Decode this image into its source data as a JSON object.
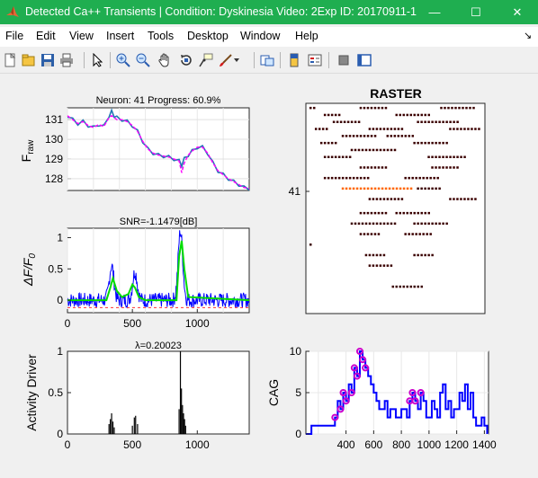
{
  "window": {
    "title": "Detected Ca++ Transients | Condition: Dyskinesia Video: 2Exp ID: 20170911-1",
    "minimize_glyph": "—",
    "maximize_glyph": "☐",
    "close_glyph": "✕"
  },
  "menu": [
    "File",
    "Edit",
    "View",
    "Insert",
    "Tools",
    "Desktop",
    "Window",
    "Help"
  ],
  "menu_arrow": "↘",
  "toolbar_icons": [
    "new-figure-icon",
    "open-file-icon",
    "save-icon",
    "print-icon",
    "pointer-icon",
    "zoom-in-icon",
    "zoom-out-icon",
    "pan-icon",
    "rotate-3d-icon",
    "data-cursor-icon",
    "brush-icon",
    "brush-dropdown-icon",
    "link-plot-icon",
    "insert-colorbar-icon",
    "insert-legend-icon",
    "hide-plot-tools-icon",
    "show-plot-tools-icon"
  ],
  "colors": {
    "titlebar": "#1fae50",
    "raw": "#1f77b4",
    "fit": "#ff00ff",
    "dff": "#0000ff",
    "green": "#00dd00",
    "cag": "#0000ff",
    "marker": "#cc00cc"
  },
  "chart_data": [
    {
      "type": "line",
      "title": "Neuron: 41 Progress: 60.9%",
      "ylabel": "F",
      "ylabel_sub": "raw",
      "ylim": [
        127.4,
        131.6
      ],
      "yticks": [
        128,
        129,
        130,
        131
      ],
      "xlim": [
        0,
        1400
      ],
      "series": [
        {
          "x": [
            0,
            40,
            80,
            120,
            160,
            200,
            240,
            280,
            320,
            340,
            360,
            380,
            420,
            460,
            500,
            540,
            580,
            620,
            660,
            700,
            740,
            780,
            820,
            860,
            880,
            900,
            930,
            960,
            1000,
            1040,
            1080,
            1120,
            1160,
            1200,
            1240,
            1280,
            1320,
            1360,
            1400
          ],
          "y": [
            131.2,
            131.0,
            130.8,
            130.9,
            130.7,
            130.6,
            130.75,
            130.65,
            131.2,
            131.4,
            131.2,
            131.1,
            131.0,
            130.9,
            130.7,
            130.4,
            129.9,
            129.5,
            129.3,
            129.2,
            129.15,
            129.1,
            129.0,
            128.9,
            128.7,
            129.0,
            129.2,
            129.4,
            129.6,
            129.6,
            129.3,
            128.8,
            128.4,
            128.2,
            128.0,
            127.85,
            127.7,
            127.55,
            127.5
          ]
        },
        {
          "x": [
            0,
            40,
            80,
            120,
            160,
            200,
            240,
            280,
            320,
            340,
            360,
            380,
            420,
            460,
            500,
            540,
            580,
            620,
            660,
            700,
            740,
            780,
            820,
            860,
            880,
            900,
            930,
            960,
            1000,
            1040,
            1080,
            1120,
            1160,
            1200,
            1240,
            1280,
            1320,
            1360,
            1400
          ],
          "y": [
            131.2,
            131.0,
            130.8,
            130.9,
            130.7,
            130.6,
            130.75,
            130.65,
            131.1,
            131.2,
            131.1,
            131.0,
            131.0,
            130.9,
            130.7,
            130.4,
            129.9,
            129.5,
            129.3,
            129.2,
            129.15,
            129.1,
            129.0,
            128.9,
            128.3,
            128.8,
            129.2,
            129.4,
            129.6,
            129.6,
            129.3,
            128.8,
            128.4,
            128.2,
            128.0,
            127.85,
            127.7,
            127.55,
            127.5
          ]
        }
      ]
    },
    {
      "type": "line",
      "title": "SNR=-1.1479[dB]",
      "ylabel": "ΔF/F",
      "ylabel_sub": "0",
      "ylim": [
        -0.2,
        1.15
      ],
      "yticks": [
        0,
        0.5,
        1
      ],
      "xlim": [
        0,
        1400
      ],
      "xticks": [
        0,
        500,
        1000
      ],
      "noise_amplitude": 0.12,
      "peaks": [
        {
          "x": 340,
          "height": 0.55
        },
        {
          "x": 520,
          "height": 0.45
        },
        {
          "x": 870,
          "height": 1.1
        }
      ],
      "fit_series": {
        "x": [
          0,
          300,
          330,
          350,
          380,
          420,
          470,
          500,
          520,
          550,
          600,
          840,
          860,
          880,
          900,
          930,
          1400
        ],
        "y": [
          0,
          0,
          0.2,
          0.35,
          0.15,
          0.05,
          0.1,
          0.25,
          0.2,
          0.05,
          0,
          0,
          0.7,
          0.95,
          0.5,
          0.05,
          0
        ]
      },
      "threshold": -0.12
    },
    {
      "type": "bar",
      "title": "λ=0.20023",
      "ylabel": "Activity Driver",
      "ylim": [
        0,
        1
      ],
      "yticks": [
        0,
        0.5,
        1
      ],
      "xlim": [
        0,
        1400
      ],
      "xticks": [
        0,
        500,
        1000
      ],
      "spikes": [
        {
          "x": 320,
          "v": 0.12
        },
        {
          "x": 330,
          "v": 0.18
        },
        {
          "x": 340,
          "v": 0.25
        },
        {
          "x": 350,
          "v": 0.15
        },
        {
          "x": 360,
          "v": 0.08
        },
        {
          "x": 500,
          "v": 0.1
        },
        {
          "x": 515,
          "v": 0.2
        },
        {
          "x": 525,
          "v": 0.22
        },
        {
          "x": 540,
          "v": 0.12
        },
        {
          "x": 860,
          "v": 0.3
        },
        {
          "x": 870,
          "v": 1.0
        },
        {
          "x": 878,
          "v": 0.55
        },
        {
          "x": 886,
          "v": 0.35
        },
        {
          "x": 894,
          "v": 0.25
        },
        {
          "x": 902,
          "v": 0.18
        },
        {
          "x": 910,
          "v": 0.1
        }
      ]
    },
    {
      "type": "raster",
      "title": "RASTER",
      "ylabel": "",
      "ytick_label": "41",
      "rows": 60,
      "events": [
        {
          "row": 1,
          "x0": 0.02,
          "x1": 0.05
        },
        {
          "row": 1,
          "x0": 0.3,
          "x1": 0.45
        },
        {
          "row": 1,
          "x0": 0.75,
          "x1": 0.95
        },
        {
          "row": 3,
          "x0": 0.1,
          "x1": 0.2
        },
        {
          "row": 3,
          "x0": 0.5,
          "x1": 0.7
        },
        {
          "row": 5,
          "x0": 0.15,
          "x1": 0.3
        },
        {
          "row": 5,
          "x0": 0.62,
          "x1": 0.85
        },
        {
          "row": 7,
          "x0": 0.05,
          "x1": 0.12
        },
        {
          "row": 7,
          "x0": 0.35,
          "x1": 0.55
        },
        {
          "row": 7,
          "x0": 0.8,
          "x1": 0.98
        },
        {
          "row": 9,
          "x0": 0.2,
          "x1": 0.4
        },
        {
          "row": 9,
          "x0": 0.45,
          "x1": 0.6
        },
        {
          "row": 11,
          "x0": 0.08,
          "x1": 0.18
        },
        {
          "row": 11,
          "x0": 0.6,
          "x1": 0.8
        },
        {
          "row": 13,
          "x0": 0.25,
          "x1": 0.5
        },
        {
          "row": 15,
          "x0": 0.1,
          "x1": 0.25
        },
        {
          "row": 15,
          "x0": 0.68,
          "x1": 0.9
        },
        {
          "row": 18,
          "x0": 0.3,
          "x1": 0.45
        },
        {
          "row": 18,
          "x0": 0.7,
          "x1": 0.85
        },
        {
          "row": 21,
          "x0": 0.1,
          "x1": 0.35
        },
        {
          "row": 21,
          "x0": 0.55,
          "x1": 0.75
        },
        {
          "row": 24,
          "x0": 0.2,
          "x1": 0.6,
          "color": "#ff6600"
        },
        {
          "row": 24,
          "x0": 0.62,
          "x1": 0.75
        },
        {
          "row": 27,
          "x0": 0.35,
          "x1": 0.55
        },
        {
          "row": 27,
          "x0": 0.8,
          "x1": 0.95
        },
        {
          "row": 31,
          "x0": 0.3,
          "x1": 0.45
        },
        {
          "row": 31,
          "x0": 0.5,
          "x1": 0.7
        },
        {
          "row": 34,
          "x0": 0.25,
          "x1": 0.5
        },
        {
          "row": 34,
          "x0": 0.6,
          "x1": 0.8
        },
        {
          "row": 37,
          "x0": 0.3,
          "x1": 0.42
        },
        {
          "row": 37,
          "x0": 0.55,
          "x1": 0.7
        },
        {
          "row": 40,
          "x0": 0.02,
          "x1": 0.04
        },
        {
          "row": 43,
          "x0": 0.33,
          "x1": 0.45
        },
        {
          "row": 43,
          "x0": 0.6,
          "x1": 0.72
        },
        {
          "row": 46,
          "x0": 0.35,
          "x1": 0.48
        },
        {
          "row": 52,
          "x0": 0.48,
          "x1": 0.65
        }
      ]
    },
    {
      "type": "line",
      "title": "",
      "ylabel": "CAG",
      "ylim": [
        0,
        10
      ],
      "yticks": [
        0,
        5,
        10
      ],
      "xlim": [
        110,
        1430
      ],
      "xticks": [
        200,
        400,
        600,
        800,
        1000,
        1200,
        1400
      ],
      "series": [
        {
          "x": [
            110,
            150,
            200,
            250,
            300,
            320,
            340,
            360,
            380,
            400,
            420,
            440,
            460,
            480,
            500,
            520,
            540,
            560,
            580,
            600,
            620,
            640,
            660,
            680,
            700,
            720,
            740,
            760,
            780,
            800,
            820,
            840,
            860,
            880,
            900,
            920,
            940,
            960,
            980,
            1000,
            1020,
            1040,
            1060,
            1080,
            1100,
            1120,
            1140,
            1160,
            1180,
            1200,
            1220,
            1240,
            1260,
            1280,
            1300,
            1320,
            1340,
            1360,
            1380,
            1400,
            1420
          ],
          "y": [
            0,
            1,
            1,
            1,
            1,
            2,
            4,
            3,
            5,
            4,
            6,
            5,
            8,
            7,
            10,
            9,
            8,
            7,
            6,
            5,
            4,
            3,
            3,
            4,
            2,
            3,
            3,
            2,
            2,
            3,
            3,
            2,
            4,
            5,
            4,
            3,
            5,
            4,
            2,
            2,
            4,
            3,
            2,
            5,
            6,
            3,
            4,
            2,
            3,
            3,
            5,
            4,
            6,
            3,
            5,
            2,
            1,
            1,
            2,
            1,
            0
          ]
        }
      ],
      "markers": [
        {
          "x": 320,
          "y": 2
        },
        {
          "x": 360,
          "y": 3
        },
        {
          "x": 380,
          "y": 5
        },
        {
          "x": 400,
          "y": 4
        },
        {
          "x": 440,
          "y": 5
        },
        {
          "x": 460,
          "y": 8
        },
        {
          "x": 480,
          "y": 7
        },
        {
          "x": 500,
          "y": 10
        },
        {
          "x": 520,
          "y": 9
        },
        {
          "x": 540,
          "y": 8
        },
        {
          "x": 860,
          "y": 4
        },
        {
          "x": 880,
          "y": 5
        },
        {
          "x": 900,
          "y": 4
        },
        {
          "x": 940,
          "y": 5
        }
      ]
    }
  ]
}
